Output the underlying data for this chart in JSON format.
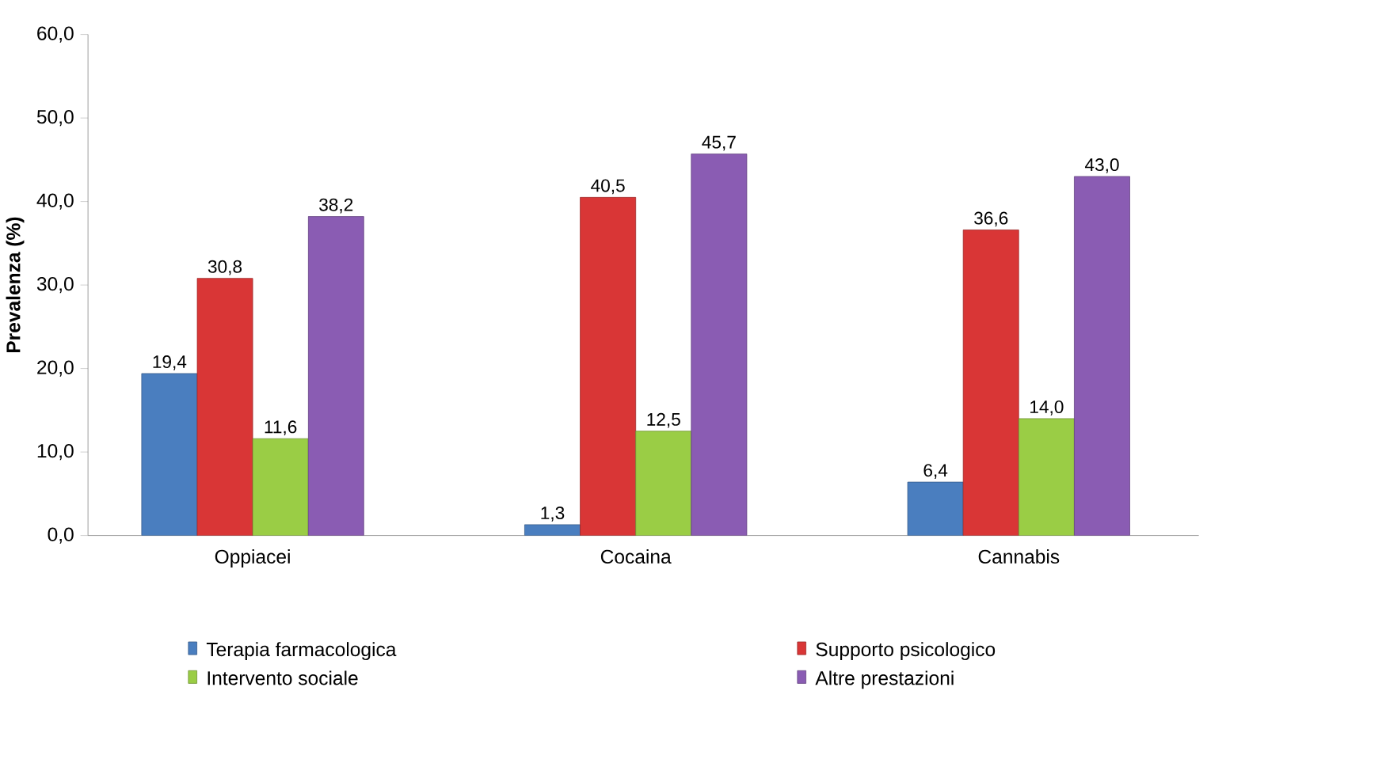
{
  "chart_data": {
    "type": "bar",
    "ylabel": "Prevalenza (%)",
    "categories": [
      "Oppiacei",
      "Cocaina",
      "Cannabis"
    ],
    "series": [
      {
        "name": "Terapia farmacologica",
        "color": "#4a7ebf",
        "values": [
          19.4,
          1.3,
          6.4
        ],
        "value_labels": [
          "19,4",
          "1,3",
          "6,4"
        ]
      },
      {
        "name": "Supporto psicologico",
        "color": "#d93636",
        "values": [
          30.8,
          40.5,
          36.6
        ],
        "value_labels": [
          "30,8",
          "40,5",
          "36,6"
        ]
      },
      {
        "name": "Intervento sociale",
        "color": "#9acd45",
        "values": [
          11.6,
          12.5,
          14.0
        ],
        "value_labels": [
          "11,6",
          "12,5",
          "14,0"
        ]
      },
      {
        "name": "Altre prestazioni",
        "color": "#8a5cb3",
        "values": [
          38.2,
          45.7,
          43.0
        ],
        "value_labels": [
          "38,2",
          "45,7",
          "43,0"
        ]
      }
    ],
    "ylim": [
      0,
      60
    ],
    "yticks": [
      {
        "value": 0,
        "label": "0,0"
      },
      {
        "value": 10,
        "label": "10,0"
      },
      {
        "value": 20,
        "label": "20,0"
      },
      {
        "value": 30,
        "label": "30,0"
      },
      {
        "value": 40,
        "label": "40,0"
      },
      {
        "value": 50,
        "label": "50,0"
      },
      {
        "value": 60,
        "label": "60,0"
      }
    ],
    "grid": false,
    "legend": "bottom"
  }
}
